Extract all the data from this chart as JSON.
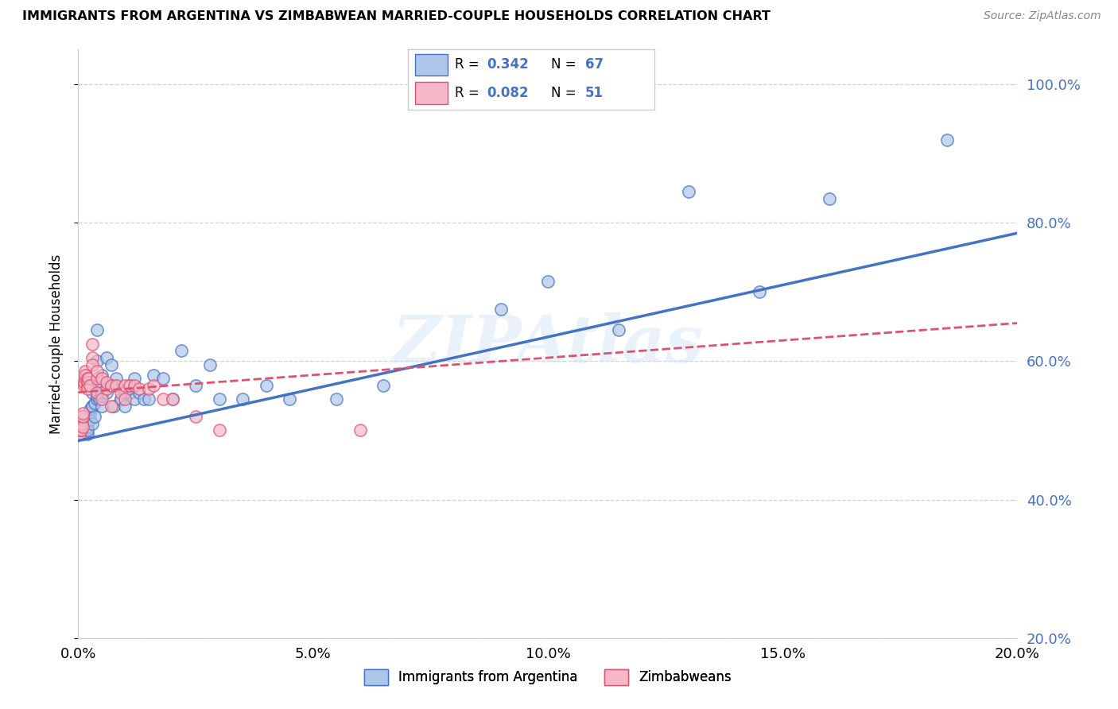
{
  "title": "IMMIGRANTS FROM ARGENTINA VS ZIMBABWEAN MARRIED-COUPLE HOUSEHOLDS CORRELATION CHART",
  "source": "Source: ZipAtlas.com",
  "ylabel": "Married-couple Households",
  "legend_label1": "Immigrants from Argentina",
  "legend_label2": "Zimbabweans",
  "R1": 0.342,
  "N1": 67,
  "R2": 0.082,
  "N2": 51,
  "color1": "#aec6e8",
  "color2": "#f5b8c8",
  "line_color1": "#4472c4",
  "line_color2": "#e05070",
  "watermark": "ZIPAtlas",
  "xlim": [
    0.0,
    0.2
  ],
  "ylim": [
    0.2,
    1.05
  ],
  "trendline1_x0": 0.0,
  "trendline1_y0": 0.485,
  "trendline1_x1": 0.2,
  "trendline1_y1": 0.785,
  "trendline2_x0": 0.0,
  "trendline2_y0": 0.555,
  "trendline2_x1": 0.2,
  "trendline2_y1": 0.655,
  "argentina_x": [
    0.0005,
    0.001,
    0.001,
    0.0015,
    0.0015,
    0.002,
    0.002,
    0.002,
    0.002,
    0.002,
    0.0025,
    0.0025,
    0.0025,
    0.003,
    0.003,
    0.003,
    0.003,
    0.003,
    0.0035,
    0.0035,
    0.004,
    0.004,
    0.004,
    0.004,
    0.0045,
    0.0045,
    0.005,
    0.005,
    0.005,
    0.005,
    0.006,
    0.006,
    0.007,
    0.007,
    0.0075,
    0.008,
    0.008,
    0.009,
    0.009,
    0.01,
    0.01,
    0.011,
    0.011,
    0.012,
    0.012,
    0.013,
    0.014,
    0.015,
    0.016,
    0.018,
    0.02,
    0.022,
    0.025,
    0.028,
    0.03,
    0.035,
    0.04,
    0.045,
    0.055,
    0.065,
    0.09,
    0.1,
    0.115,
    0.13,
    0.145,
    0.16,
    0.185
  ],
  "argentina_y": [
    0.52,
    0.495,
    0.51,
    0.5,
    0.52,
    0.52,
    0.495,
    0.505,
    0.5,
    0.515,
    0.525,
    0.515,
    0.53,
    0.51,
    0.535,
    0.535,
    0.555,
    0.57,
    0.52,
    0.54,
    0.545,
    0.55,
    0.6,
    0.645,
    0.545,
    0.565,
    0.535,
    0.55,
    0.555,
    0.58,
    0.555,
    0.605,
    0.565,
    0.595,
    0.535,
    0.565,
    0.575,
    0.545,
    0.545,
    0.535,
    0.555,
    0.565,
    0.555,
    0.575,
    0.545,
    0.555,
    0.545,
    0.545,
    0.58,
    0.575,
    0.545,
    0.615,
    0.565,
    0.595,
    0.545,
    0.545,
    0.565,
    0.545,
    0.545,
    0.565,
    0.675,
    0.715,
    0.645,
    0.845,
    0.7,
    0.835,
    0.92
  ],
  "zimbabwe_x": [
    0.0002,
    0.0002,
    0.0003,
    0.0003,
    0.0004,
    0.0004,
    0.0005,
    0.0006,
    0.0007,
    0.0007,
    0.0008,
    0.001,
    0.001,
    0.001,
    0.0012,
    0.0012,
    0.0014,
    0.0015,
    0.0015,
    0.002,
    0.002,
    0.002,
    0.002,
    0.0022,
    0.0025,
    0.003,
    0.003,
    0.003,
    0.004,
    0.004,
    0.004,
    0.005,
    0.005,
    0.006,
    0.006,
    0.007,
    0.007,
    0.008,
    0.009,
    0.01,
    0.01,
    0.011,
    0.012,
    0.013,
    0.015,
    0.016,
    0.018,
    0.02,
    0.025,
    0.03,
    0.06
  ],
  "zimbabwe_y": [
    0.495,
    0.51,
    0.5,
    0.505,
    0.515,
    0.5,
    0.51,
    0.5,
    0.515,
    0.51,
    0.52,
    0.505,
    0.52,
    0.525,
    0.565,
    0.57,
    0.575,
    0.585,
    0.58,
    0.575,
    0.565,
    0.57,
    0.56,
    0.575,
    0.565,
    0.605,
    0.625,
    0.595,
    0.575,
    0.585,
    0.555,
    0.545,
    0.575,
    0.56,
    0.57,
    0.565,
    0.535,
    0.565,
    0.555,
    0.565,
    0.545,
    0.565,
    0.565,
    0.56,
    0.56,
    0.565,
    0.545,
    0.545,
    0.52,
    0.5,
    0.5
  ]
}
